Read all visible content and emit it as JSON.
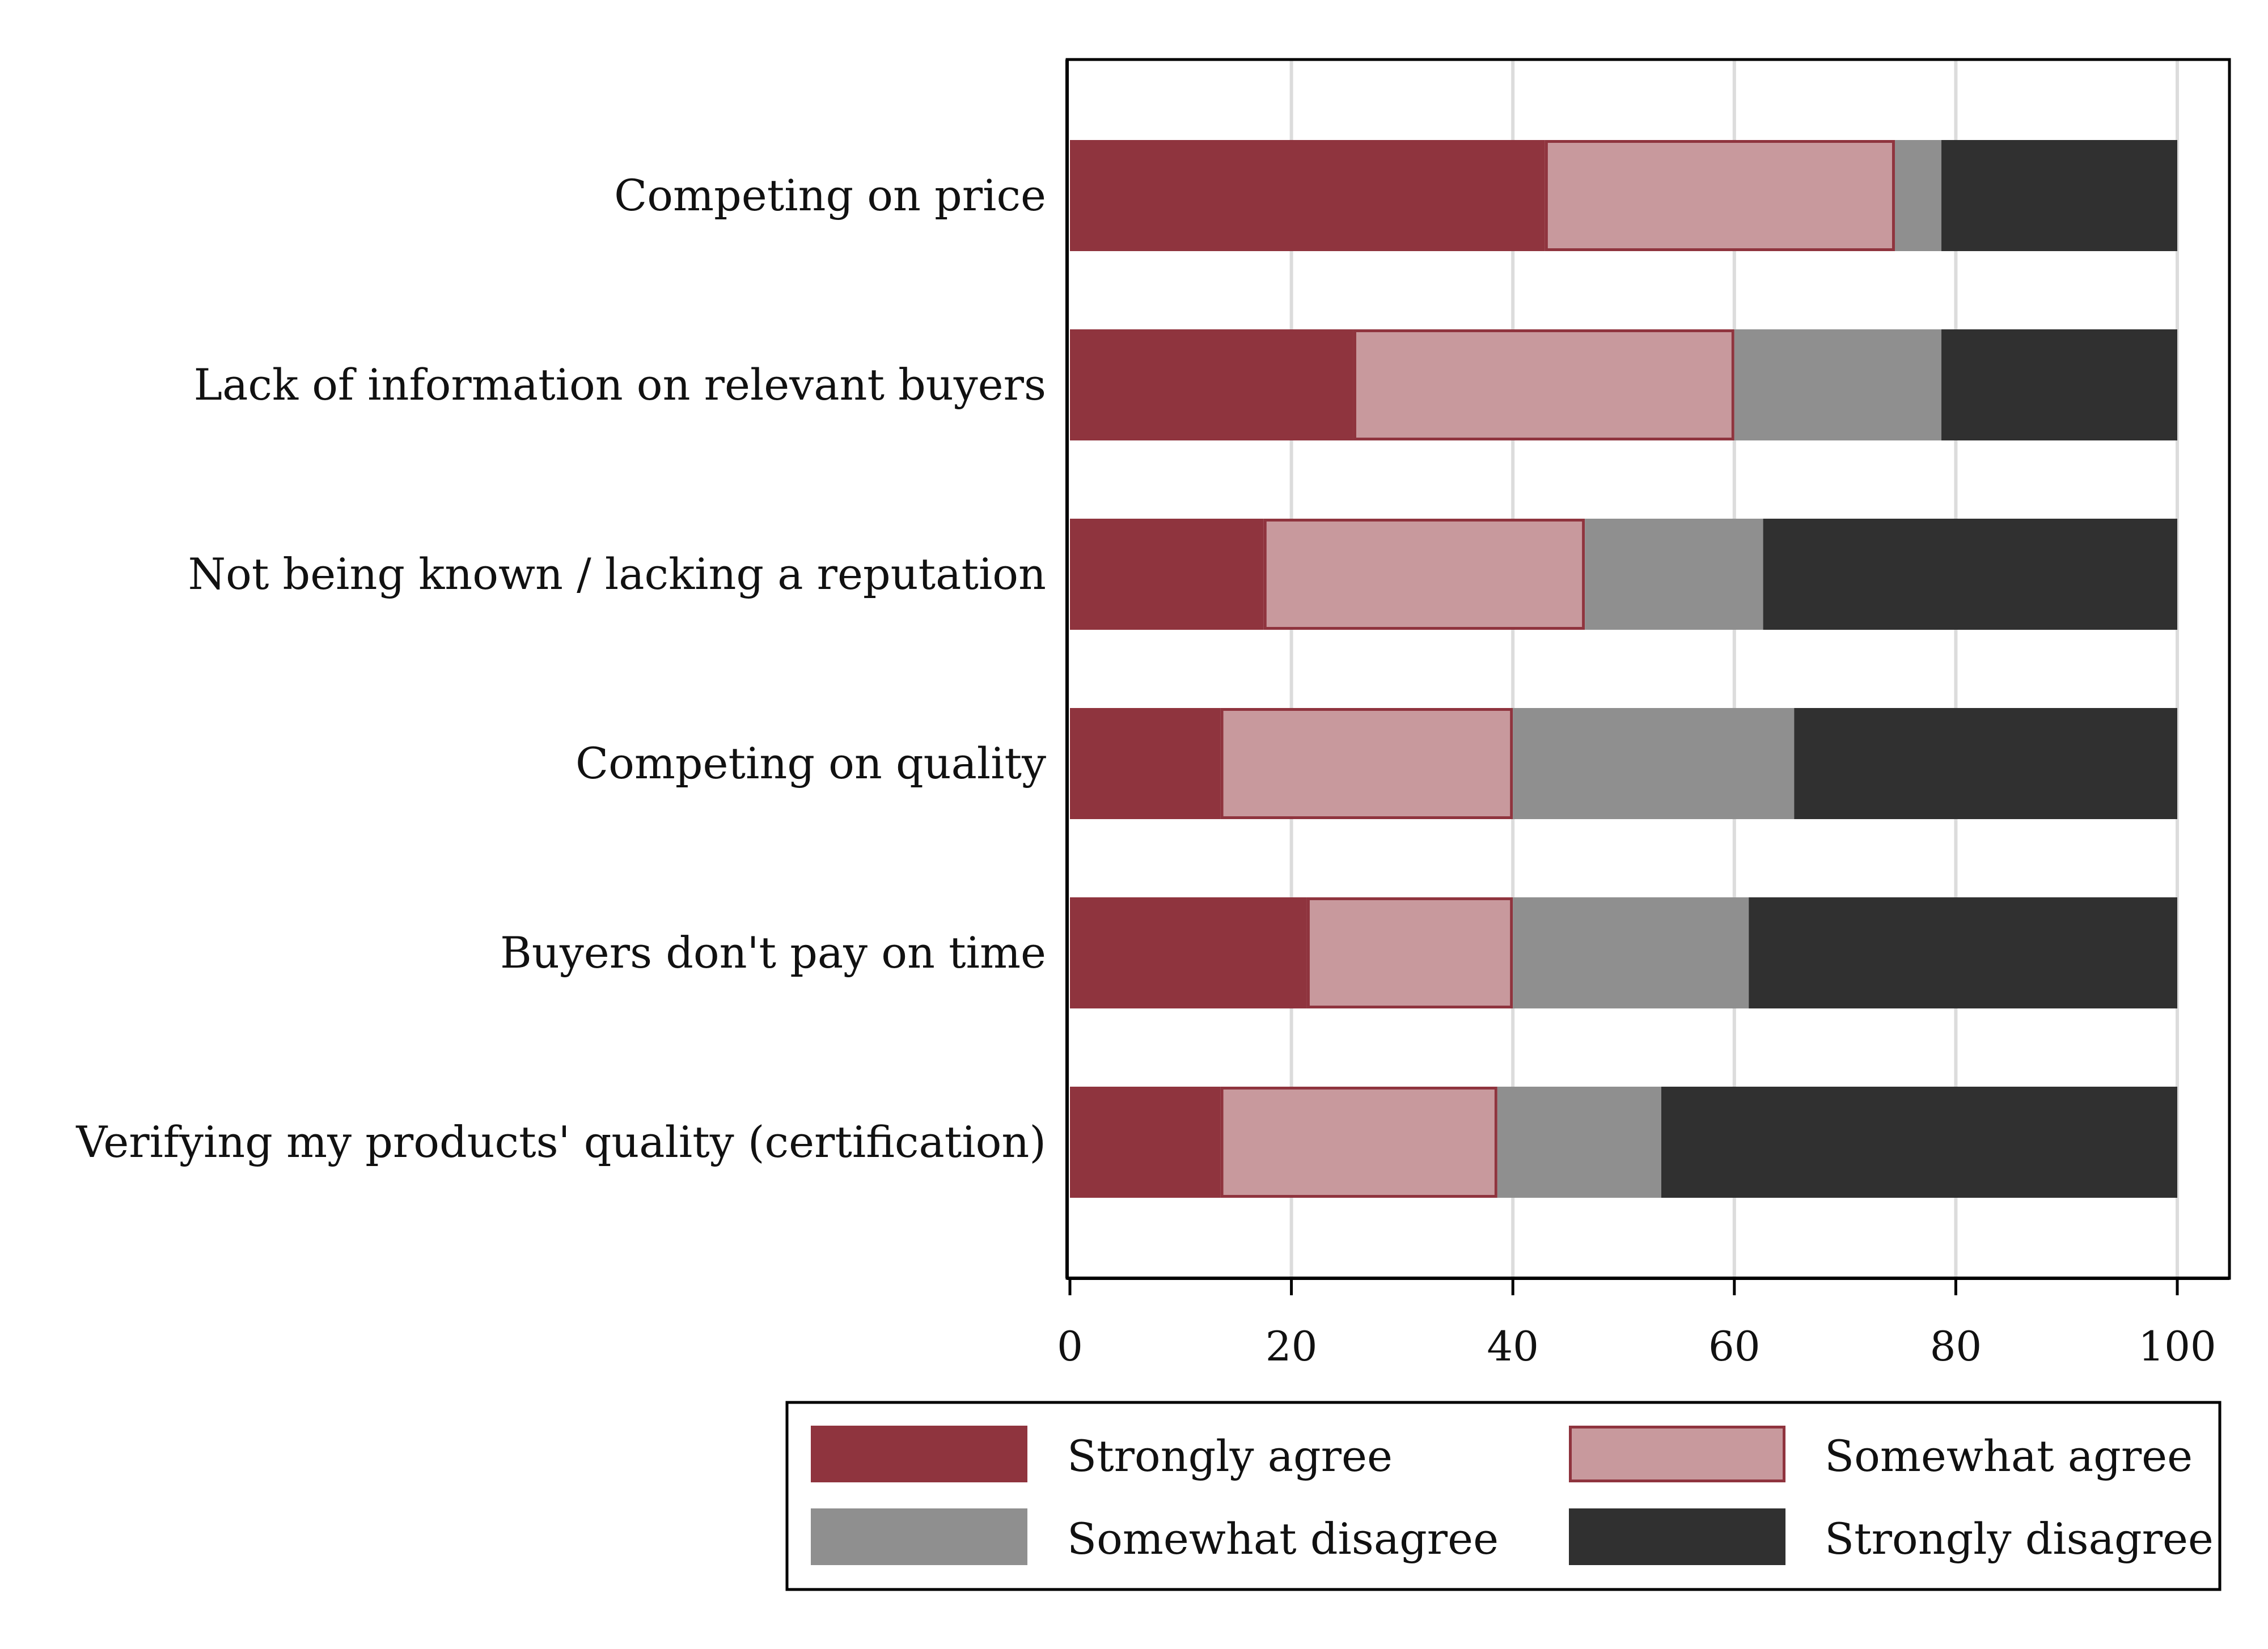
{
  "chart_data": {
    "type": "bar",
    "orientation": "horizontal",
    "stacked": true,
    "title": "",
    "xlabel": "",
    "ylabel": "",
    "xlim": [
      0,
      100
    ],
    "xticks": [
      0,
      20,
      40,
      60,
      80,
      100
    ],
    "grid": true,
    "legend_position": "bottom",
    "categories": [
      "Competing on price",
      "Lack of information on relevant buyers",
      "Not being known / lacking a reputation",
      "Competing on quality",
      "Buyers don't pay on time",
      "Verifying my products' quality (certification)"
    ],
    "series": [
      {
        "name": "Strongly agree",
        "color": "#8f343e",
        "values": [
          42.9,
          25.6,
          17.5,
          13.6,
          21.4,
          13.6
        ]
      },
      {
        "name": "Somewhat agree",
        "color": "#c8999d",
        "border": "#8f343e",
        "values": [
          31.6,
          34.4,
          29.0,
          26.4,
          18.6,
          25.0
        ]
      },
      {
        "name": "Somewhat disagree",
        "color": "#8f8f8f",
        "values": [
          4.2,
          18.7,
          16.1,
          25.4,
          21.3,
          14.8
        ]
      },
      {
        "name": "Strongly disagree",
        "color": "#303030",
        "values": [
          21.3,
          21.3,
          37.4,
          34.6,
          38.7,
          46.6
        ]
      }
    ]
  }
}
